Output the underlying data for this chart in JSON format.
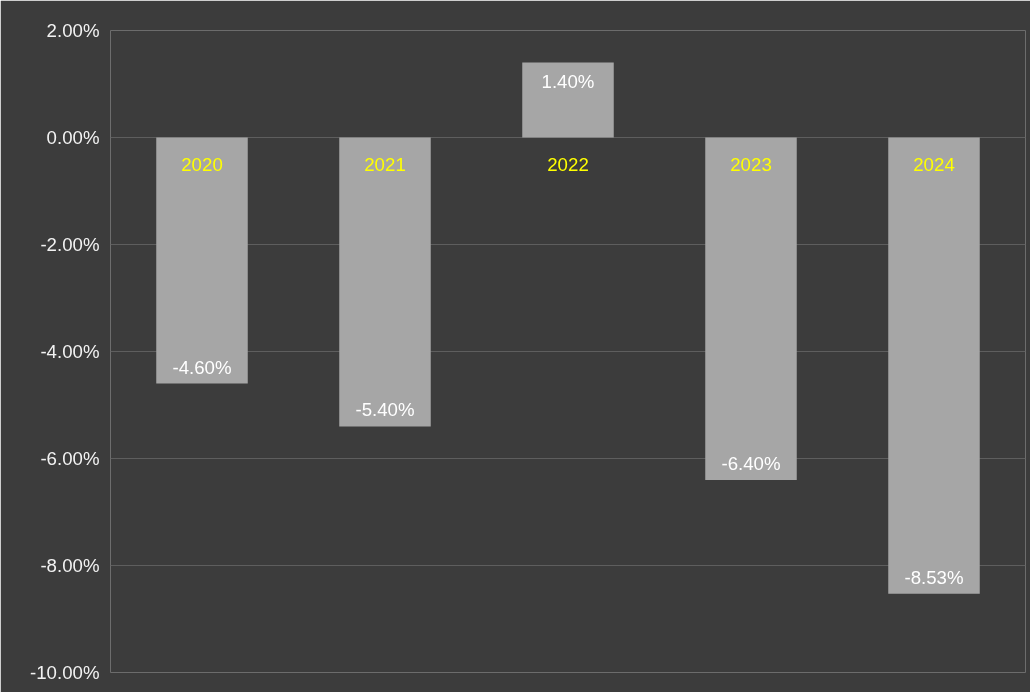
{
  "chart_data": {
    "type": "bar",
    "categories": [
      "2020",
      "2021",
      "2022",
      "2023",
      "2024"
    ],
    "values": [
      -4.6,
      -5.4,
      1.4,
      -6.4,
      -8.53
    ],
    "value_labels": [
      "-4.60%",
      "-5.40%",
      "1.40%",
      "-6.40%",
      "-8.53%"
    ],
    "color": "#a6a6a6",
    "ylim": [
      -10,
      2
    ],
    "yticks": [
      {
        "value": 2,
        "label": "2.00%"
      },
      {
        "value": 0,
        "label": "0.00%"
      },
      {
        "value": -2,
        "label": "-2.00%"
      },
      {
        "value": -4,
        "label": "-4.00%"
      },
      {
        "value": -6,
        "label": "-6.00%"
      },
      {
        "value": -8,
        "label": "-8.00%"
      },
      {
        "value": -10,
        "label": "-10.00%"
      }
    ],
    "grid": "y"
  }
}
